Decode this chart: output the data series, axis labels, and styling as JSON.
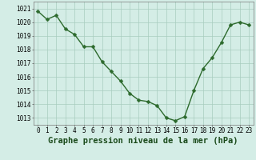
{
  "x": [
    0,
    1,
    2,
    3,
    4,
    5,
    6,
    7,
    8,
    9,
    10,
    11,
    12,
    13,
    14,
    15,
    16,
    17,
    18,
    19,
    20,
    21,
    22,
    23
  ],
  "y": [
    1020.8,
    1020.2,
    1020.5,
    1019.5,
    1019.1,
    1018.2,
    1018.2,
    1017.1,
    1016.4,
    1015.7,
    1014.8,
    1014.3,
    1014.2,
    1013.9,
    1013.0,
    1012.8,
    1013.1,
    1015.0,
    1016.6,
    1017.4,
    1018.5,
    1019.8,
    1020.0,
    1019.8
  ],
  "line_color": "#2d6a2d",
  "marker_color": "#2d6a2d",
  "bg_color": "#d4ede6",
  "grid_color": "#a8ccbf",
  "xlabel": "Graphe pression niveau de la mer (hPa)",
  "ylim": [
    1012.5,
    1021.5
  ],
  "yticks": [
    1013,
    1014,
    1015,
    1016,
    1017,
    1018,
    1019,
    1020,
    1021
  ],
  "xticks": [
    0,
    1,
    2,
    3,
    4,
    5,
    6,
    7,
    8,
    9,
    10,
    11,
    12,
    13,
    14,
    15,
    16,
    17,
    18,
    19,
    20,
    21,
    22,
    23
  ],
  "xlabel_fontsize": 7.5,
  "tick_fontsize": 5.5,
  "line_width": 1.0,
  "marker_size": 2.5
}
